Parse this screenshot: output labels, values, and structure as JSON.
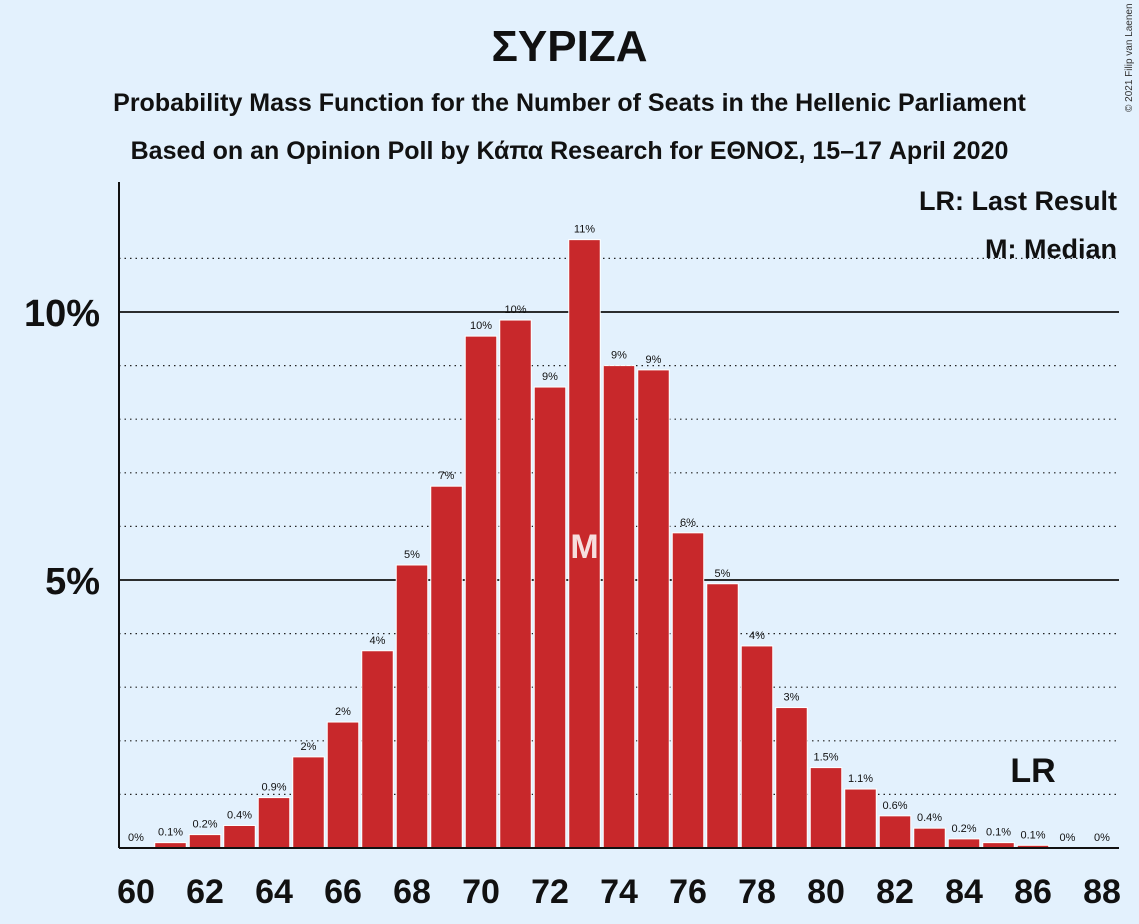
{
  "title": "ΣΥΡΙΖΑ",
  "subtitle": "Probability Mass Function for the Number of Seats in the Hellenic Parliament",
  "subtitle2": "Based on an Opinion Poll by Κάπα Research for ΕΘΝΟΣ, 15–17 April 2020",
  "copyright": "© 2021 Filip van Laenen",
  "colors": {
    "background": "#e3f1fd",
    "bar": "#c8282b",
    "text": "#111111"
  },
  "chart_data": {
    "type": "bar",
    "categories": [
      60,
      61,
      62,
      63,
      64,
      65,
      66,
      67,
      68,
      69,
      70,
      71,
      72,
      73,
      74,
      75,
      76,
      77,
      78,
      79,
      80,
      81,
      82,
      83,
      84,
      85,
      86,
      87,
      88
    ],
    "values": [
      0,
      0.1,
      0.25,
      0.42,
      0.94,
      1.7,
      2.35,
      3.68,
      5.28,
      6.75,
      9.55,
      9.85,
      8.6,
      11.35,
      9.0,
      8.92,
      5.88,
      4.93,
      3.77,
      2.62,
      1.5,
      1.1,
      0.6,
      0.37,
      0.17,
      0.1,
      0.05,
      0,
      0
    ],
    "value_labels": [
      "0%",
      "0.1%",
      "0.2%",
      "0.4%",
      "0.9%",
      "2%",
      "2%",
      "4%",
      "5%",
      "7%",
      "10%",
      "10%",
      "9%",
      "11%",
      "9%",
      "9%",
      "6%",
      "5%",
      "4%",
      "3%",
      "1.5%",
      "1.1%",
      "0.6%",
      "0.4%",
      "0.2%",
      "0.1%",
      "0.1%",
      "0%",
      "0%"
    ],
    "x_tick_labels": [
      "60",
      "62",
      "64",
      "66",
      "68",
      "70",
      "72",
      "74",
      "76",
      "78",
      "80",
      "82",
      "84",
      "86",
      "88"
    ],
    "y_tick_labels": [
      {
        "value": 5,
        "label": "5%"
      },
      {
        "value": 10,
        "label": "10%"
      }
    ],
    "ylim": [
      0,
      12.4
    ],
    "dotted_gridlines": [
      1,
      2,
      3,
      4,
      6,
      7,
      8,
      9,
      11
    ],
    "solid_gridlines": [
      5,
      10
    ],
    "median": {
      "seat": 73,
      "label": "M"
    },
    "last_result": {
      "seat": 86,
      "label": "LR"
    },
    "legend": [
      "LR: Last Result",
      "M: Median"
    ],
    "legend_position": "top-right"
  }
}
